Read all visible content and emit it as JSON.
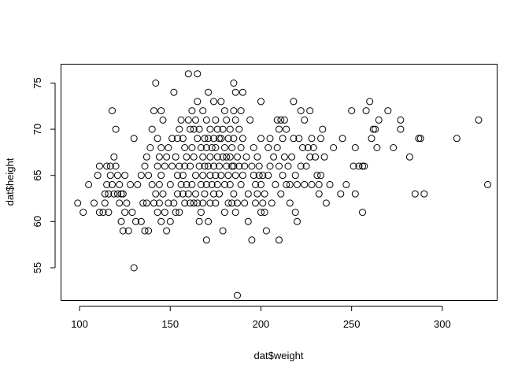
{
  "chart_data": {
    "type": "scatter",
    "title": "",
    "xlabel": "dat$weight",
    "ylabel": "dat$height",
    "xlim": [
      90,
      330
    ],
    "ylim": [
      51.5,
      77
    ],
    "x_ticks": [
      100,
      150,
      200,
      250,
      300
    ],
    "y_ticks": [
      55,
      60,
      65,
      70,
      75
    ],
    "x_tick_labels": [
      "100",
      "150",
      "200",
      "250",
      "300"
    ],
    "y_tick_labels": [
      "55",
      "60",
      "65",
      "70",
      "75"
    ],
    "grid": false,
    "legend": "none",
    "marker": "open-circle",
    "points": [
      [
        99,
        62
      ],
      [
        102,
        61
      ],
      [
        105,
        64
      ],
      [
        108,
        62
      ],
      [
        110,
        65
      ],
      [
        111,
        66
      ],
      [
        111,
        61
      ],
      [
        113,
        61
      ],
      [
        114,
        63
      ],
      [
        114,
        62
      ],
      [
        115,
        66
      ],
      [
        115,
        64
      ],
      [
        116,
        61
      ],
      [
        116,
        63
      ],
      [
        117,
        66
      ],
      [
        117,
        65
      ],
      [
        118,
        72
      ],
      [
        118,
        64
      ],
      [
        119,
        67
      ],
      [
        119,
        63
      ],
      [
        120,
        70
      ],
      [
        120,
        66
      ],
      [
        121,
        63
      ],
      [
        121,
        65
      ],
      [
        122,
        62
      ],
      [
        122,
        64
      ],
      [
        123,
        63
      ],
      [
        123,
        60
      ],
      [
        124,
        59
      ],
      [
        124,
        63
      ],
      [
        125,
        65
      ],
      [
        125,
        61
      ],
      [
        126,
        62
      ],
      [
        127,
        59
      ],
      [
        128,
        64
      ],
      [
        129,
        61
      ],
      [
        130,
        69
      ],
      [
        130,
        55
      ],
      [
        132,
        64
      ],
      [
        131,
        60
      ],
      [
        134,
        60
      ],
      [
        134,
        65
      ],
      [
        135,
        62
      ],
      [
        136,
        59
      ],
      [
        136,
        66
      ],
      [
        137,
        67
      ],
      [
        137,
        62
      ],
      [
        138,
        65
      ],
      [
        138,
        59
      ],
      [
        139,
        68
      ],
      [
        140,
        70
      ],
      [
        140,
        64
      ],
      [
        141,
        72
      ],
      [
        141,
        62
      ],
      [
        142,
        75
      ],
      [
        142,
        63
      ],
      [
        143,
        69
      ],
      [
        143,
        66
      ],
      [
        143,
        61
      ],
      [
        144,
        67
      ],
      [
        144,
        64
      ],
      [
        144,
        62
      ],
      [
        145,
        72
      ],
      [
        145,
        68
      ],
      [
        145,
        65
      ],
      [
        145,
        60
      ],
      [
        146,
        71
      ],
      [
        146,
        63
      ],
      [
        147,
        66
      ],
      [
        147,
        61
      ],
      [
        148,
        67
      ],
      [
        148,
        59
      ],
      [
        149,
        68
      ],
      [
        149,
        62
      ],
      [
        150,
        64
      ],
      [
        150,
        60
      ],
      [
        151,
        69
      ],
      [
        151,
        66
      ],
      [
        152,
        74
      ],
      [
        152,
        62
      ],
      [
        153,
        67
      ],
      [
        153,
        61
      ],
      [
        154,
        69
      ],
      [
        154,
        65
      ],
      [
        154,
        63
      ],
      [
        155,
        70
      ],
      [
        155,
        66
      ],
      [
        155,
        61
      ],
      [
        156,
        71
      ],
      [
        156,
        64
      ],
      [
        157,
        69
      ],
      [
        157,
        65
      ],
      [
        157,
        63
      ],
      [
        158,
        68
      ],
      [
        158,
        62
      ],
      [
        158,
        66
      ],
      [
        159,
        67
      ],
      [
        159,
        64
      ],
      [
        160,
        76
      ],
      [
        160,
        71
      ],
      [
        160,
        63
      ],
      [
        161,
        70
      ],
      [
        161,
        66
      ],
      [
        161,
        62
      ],
      [
        162,
        72
      ],
      [
        162,
        68
      ],
      [
        162,
        64
      ],
      [
        163,
        70
      ],
      [
        163,
        67
      ],
      [
        163,
        62
      ],
      [
        164,
        71
      ],
      [
        164,
        65
      ],
      [
        164,
        63
      ],
      [
        165,
        76
      ],
      [
        165,
        73
      ],
      [
        165,
        69
      ],
      [
        165,
        62
      ],
      [
        166,
        70
      ],
      [
        166,
        66
      ],
      [
        166,
        60
      ],
      [
        167,
        68
      ],
      [
        167,
        64
      ],
      [
        167,
        61
      ],
      [
        168,
        72
      ],
      [
        168,
        67
      ],
      [
        168,
        65
      ],
      [
        168,
        62
      ],
      [
        169,
        69
      ],
      [
        169,
        66
      ],
      [
        169,
        63
      ],
      [
        170,
        71
      ],
      [
        170,
        68
      ],
      [
        170,
        64
      ],
      [
        170,
        58
      ],
      [
        171,
        74
      ],
      [
        171,
        69
      ],
      [
        171,
        66
      ],
      [
        171,
        60
      ],
      [
        172,
        70
      ],
      [
        172,
        67
      ],
      [
        172,
        65
      ],
      [
        172,
        62
      ],
      [
        173,
        68
      ],
      [
        173,
        64
      ],
      [
        174,
        73
      ],
      [
        174,
        69
      ],
      [
        174,
        66
      ],
      [
        174,
        63
      ],
      [
        175,
        71
      ],
      [
        175,
        68
      ],
      [
        175,
        65
      ],
      [
        175,
        62
      ],
      [
        176,
        70
      ],
      [
        176,
        67
      ],
      [
        176,
        64
      ],
      [
        177,
        69
      ],
      [
        177,
        66
      ],
      [
        177,
        63
      ],
      [
        178,
        73
      ],
      [
        178,
        69
      ],
      [
        178,
        65
      ],
      [
        179,
        70
      ],
      [
        179,
        67
      ],
      [
        179,
        59
      ],
      [
        180,
        72
      ],
      [
        180,
        68
      ],
      [
        180,
        64
      ],
      [
        180,
        61
      ],
      [
        181,
        71
      ],
      [
        181,
        67
      ],
      [
        181,
        66
      ],
      [
        182,
        69
      ],
      [
        182,
        65
      ],
      [
        182,
        62
      ],
      [
        183,
        70
      ],
      [
        183,
        67
      ],
      [
        183,
        64
      ],
      [
        184,
        68
      ],
      [
        184,
        66
      ],
      [
        184,
        62
      ],
      [
        185,
        75
      ],
      [
        185,
        72
      ],
      [
        185,
        69
      ],
      [
        185,
        66
      ],
      [
        185,
        63
      ],
      [
        186,
        74
      ],
      [
        186,
        71
      ],
      [
        186,
        65
      ],
      [
        186,
        61
      ],
      [
        187,
        52
      ],
      [
        187,
        67
      ],
      [
        187,
        62
      ],
      [
        188,
        70
      ],
      [
        188,
        66
      ],
      [
        189,
        72
      ],
      [
        189,
        68
      ],
      [
        189,
        64
      ],
      [
        190,
        74
      ],
      [
        190,
        69
      ],
      [
        190,
        65
      ],
      [
        191,
        66
      ],
      [
        191,
        62
      ],
      [
        192,
        67
      ],
      [
        193,
        63
      ],
      [
        193,
        60
      ],
      [
        194,
        71
      ],
      [
        195,
        66
      ],
      [
        195,
        58
      ],
      [
        196,
        68
      ],
      [
        196,
        65
      ],
      [
        197,
        64
      ],
      [
        197,
        62
      ],
      [
        198,
        67
      ],
      [
        198,
        63
      ],
      [
        199,
        66
      ],
      [
        199,
        65
      ],
      [
        200,
        73
      ],
      [
        200,
        69
      ],
      [
        200,
        64
      ],
      [
        200,
        61
      ],
      [
        201,
        65
      ],
      [
        201,
        62
      ],
      [
        202,
        63
      ],
      [
        202,
        61
      ],
      [
        203,
        59
      ],
      [
        204,
        68
      ],
      [
        204,
        65
      ],
      [
        205,
        69
      ],
      [
        205,
        66
      ],
      [
        206,
        62
      ],
      [
        207,
        67
      ],
      [
        208,
        64
      ],
      [
        209,
        71
      ],
      [
        209,
        68
      ],
      [
        210,
        70
      ],
      [
        210,
        66
      ],
      [
        210,
        58
      ],
      [
        211,
        71
      ],
      [
        211,
        63
      ],
      [
        212,
        69
      ],
      [
        212,
        65
      ],
      [
        213,
        71
      ],
      [
        213,
        67
      ],
      [
        214,
        70
      ],
      [
        214,
        64
      ],
      [
        215,
        66
      ],
      [
        216,
        64
      ],
      [
        216,
        62
      ],
      [
        217,
        67
      ],
      [
        218,
        73
      ],
      [
        218,
        69
      ],
      [
        219,
        65
      ],
      [
        219,
        61
      ],
      [
        220,
        60
      ],
      [
        220,
        64
      ],
      [
        221,
        69
      ],
      [
        222,
        72
      ],
      [
        222,
        66
      ],
      [
        223,
        68
      ],
      [
        224,
        71
      ],
      [
        224,
        64
      ],
      [
        225,
        66
      ],
      [
        226,
        68
      ],
      [
        227,
        72
      ],
      [
        227,
        67
      ],
      [
        228,
        69
      ],
      [
        228,
        64
      ],
      [
        229,
        68
      ],
      [
        230,
        67
      ],
      [
        231,
        65
      ],
      [
        232,
        64
      ],
      [
        232,
        63
      ],
      [
        233,
        69
      ],
      [
        233,
        65
      ],
      [
        234,
        70
      ],
      [
        235,
        67
      ],
      [
        236,
        62
      ],
      [
        238,
        64
      ],
      [
        240,
        68
      ],
      [
        244,
        63
      ],
      [
        245,
        69
      ],
      [
        247,
        64
      ],
      [
        250,
        72
      ],
      [
        251,
        66
      ],
      [
        252,
        68
      ],
      [
        252,
        63
      ],
      [
        254,
        66
      ],
      [
        256,
        66
      ],
      [
        256,
        61
      ],
      [
        257,
        66
      ],
      [
        258,
        72
      ],
      [
        260,
        73
      ],
      [
        261,
        69
      ],
      [
        262,
        70
      ],
      [
        263,
        70
      ],
      [
        264,
        68
      ],
      [
        265,
        71
      ],
      [
        270,
        72
      ],
      [
        273,
        68
      ],
      [
        277,
        70
      ],
      [
        277,
        71
      ],
      [
        282,
        67
      ],
      [
        285,
        63
      ],
      [
        287,
        69
      ],
      [
        288,
        69
      ],
      [
        290,
        63
      ],
      [
        308,
        69
      ],
      [
        320,
        71
      ],
      [
        325,
        64
      ]
    ]
  }
}
